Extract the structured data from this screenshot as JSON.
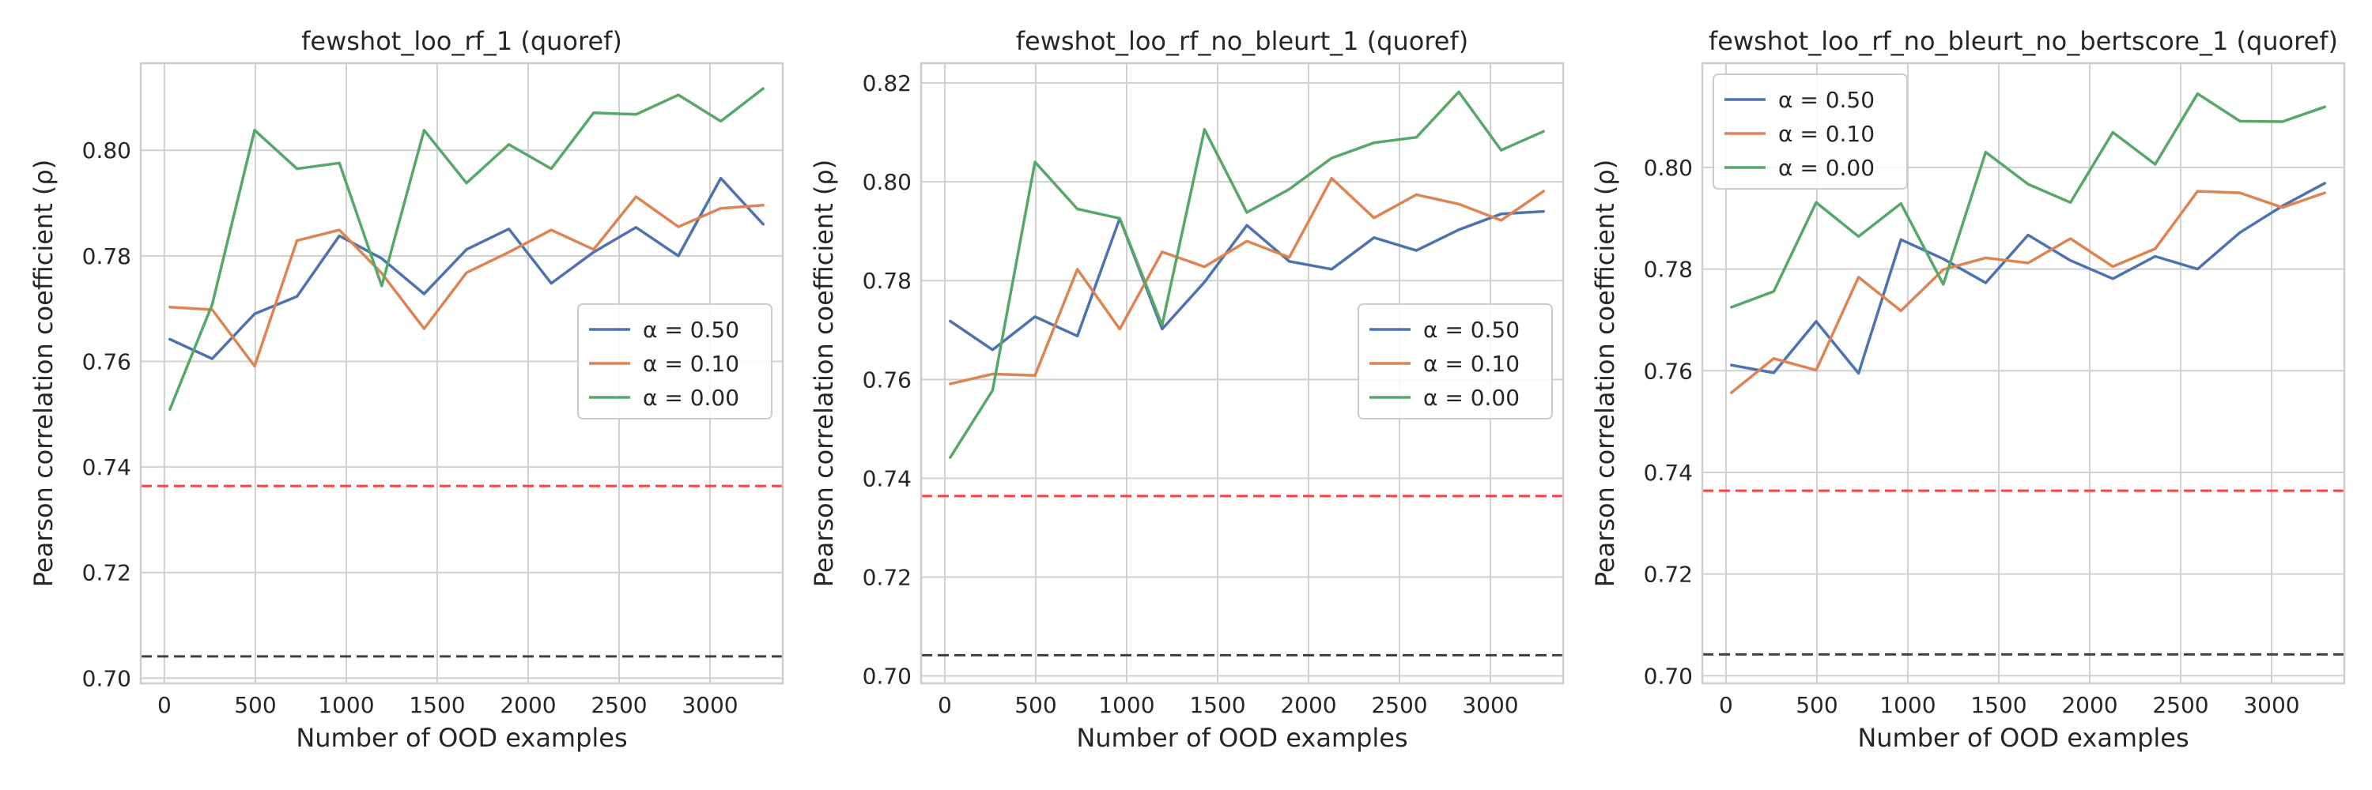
{
  "chart_data": [
    {
      "type": "line",
      "title": "fewshot_loo_rf_1 (quoref)",
      "xlabel": "Number of OOD examples",
      "ylabel": "Pearson correlation coefficient (ρ)",
      "xlim": [
        -130,
        3400
      ],
      "ylim": [
        0.699,
        0.8165
      ],
      "xticks": [
        0,
        500,
        1000,
        1500,
        2000,
        2500,
        3000
      ],
      "yticks": [
        0.7,
        0.72,
        0.74,
        0.76,
        0.78,
        0.8
      ],
      "ytick_labels": [
        "0.70",
        "0.72",
        "0.74",
        "0.76",
        "0.78",
        "0.80"
      ],
      "grid": true,
      "legend_position": "center-right",
      "x": [
        30,
        263,
        496,
        729,
        962,
        1195,
        1428,
        1661,
        1894,
        2127,
        2360,
        2593,
        2826,
        3059,
        3292
      ],
      "series": [
        {
          "name": "α = 0.50",
          "color": "#4c72b0",
          "values": [
            0.7642,
            0.7605,
            0.769,
            0.7723,
            0.7838,
            0.7795,
            0.7728,
            0.7812,
            0.7851,
            0.7748,
            0.7807,
            0.7854,
            0.78,
            0.7947,
            0.786
          ]
        },
        {
          "name": "α = 0.10",
          "color": "#dd8452",
          "values": [
            0.7703,
            0.7698,
            0.7591,
            0.7829,
            0.7849,
            0.7767,
            0.7662,
            0.7768,
            0.7807,
            0.7849,
            0.7812,
            0.7912,
            0.7855,
            0.789,
            0.7896
          ]
        },
        {
          "name": "α = 0.00",
          "color": "#55a868",
          "values": [
            0.7509,
            0.7708,
            0.8038,
            0.7965,
            0.7976,
            0.7743,
            0.8038,
            0.7938,
            0.8011,
            0.7965,
            0.8071,
            0.8068,
            0.8105,
            0.8055,
            0.8117
          ]
        }
      ],
      "reference_lines": [
        {
          "y": 0.7364,
          "color": "#ff4040"
        },
        {
          "y": 0.7041,
          "color": "#404040"
        }
      ]
    },
    {
      "type": "line",
      "title": "fewshot_loo_rf_no_bleurt_1 (quoref)",
      "xlabel": "Number of OOD examples",
      "ylabel": "Pearson correlation coefficient (ρ)",
      "xlim": [
        -130,
        3400
      ],
      "ylim": [
        0.6985,
        0.824
      ],
      "xticks": [
        0,
        500,
        1000,
        1500,
        2000,
        2500,
        3000
      ],
      "yticks": [
        0.7,
        0.72,
        0.74,
        0.76,
        0.78,
        0.8,
        0.82
      ],
      "ytick_labels": [
        "0.70",
        "0.72",
        "0.74",
        "0.76",
        "0.78",
        "0.80",
        "0.82"
      ],
      "grid": true,
      "legend_position": "center-right",
      "x": [
        30,
        263,
        496,
        729,
        962,
        1195,
        1428,
        1661,
        1894,
        2127,
        2360,
        2593,
        2826,
        3059,
        3292
      ],
      "series": [
        {
          "name": "α = 0.50",
          "color": "#4c72b0",
          "values": [
            0.7718,
            0.766,
            0.7727,
            0.7688,
            0.7926,
            0.7702,
            0.7797,
            0.7912,
            0.7839,
            0.7823,
            0.7887,
            0.7861,
            0.7903,
            0.7935,
            0.794
          ]
        },
        {
          "name": "α = 0.10",
          "color": "#dd8452",
          "values": [
            0.7591,
            0.7611,
            0.7608,
            0.7823,
            0.7702,
            0.7858,
            0.7828,
            0.788,
            0.7847,
            0.8007,
            0.7927,
            0.7974,
            0.7955,
            0.7922,
            0.7981
          ]
        },
        {
          "name": "α = 0.00",
          "color": "#55a868",
          "values": [
            0.7442,
            0.7578,
            0.804,
            0.7945,
            0.7926,
            0.771,
            0.8106,
            0.7938,
            0.7985,
            0.8048,
            0.8079,
            0.809,
            0.8182,
            0.8064,
            0.8102
          ]
        }
      ],
      "reference_lines": [
        {
          "y": 0.7364,
          "color": "#ff4040"
        },
        {
          "y": 0.7042,
          "color": "#404040"
        }
      ]
    },
    {
      "type": "line",
      "title": "fewshot_loo_rf_no_bleurt_no_bertscore_1 (quoref)",
      "xlabel": "Number of OOD examples",
      "ylabel": "Pearson correlation coefficient (ρ)",
      "xlim": [
        -130,
        3400
      ],
      "ylim": [
        0.6985,
        0.8205
      ],
      "xticks": [
        0,
        500,
        1000,
        1500,
        2000,
        2500,
        3000
      ],
      "yticks": [
        0.7,
        0.72,
        0.74,
        0.76,
        0.78,
        0.8
      ],
      "ytick_labels": [
        "0.70",
        "0.72",
        "0.74",
        "0.76",
        "0.78",
        "0.80"
      ],
      "grid": true,
      "legend_position": "top-left",
      "x": [
        30,
        263,
        496,
        729,
        962,
        1195,
        1428,
        1661,
        1894,
        2127,
        2360,
        2593,
        2826,
        3059,
        3292
      ],
      "series": [
        {
          "name": "α = 0.50",
          "color": "#4c72b0",
          "values": [
            0.7611,
            0.7596,
            0.7697,
            0.7595,
            0.7858,
            0.782,
            0.7773,
            0.7867,
            0.7817,
            0.7781,
            0.7825,
            0.78,
            0.7872,
            0.7924,
            0.7969
          ]
        },
        {
          "name": "α = 0.10",
          "color": "#dd8452",
          "values": [
            0.7557,
            0.7624,
            0.7601,
            0.7784,
            0.7718,
            0.7799,
            0.7822,
            0.7812,
            0.786,
            0.7805,
            0.784,
            0.7953,
            0.795,
            0.7921,
            0.795
          ]
        },
        {
          "name": "α = 0.00",
          "color": "#55a868",
          "values": [
            0.7725,
            0.7756,
            0.7931,
            0.7864,
            0.7929,
            0.777,
            0.803,
            0.7967,
            0.7931,
            0.8069,
            0.8006,
            0.8145,
            0.8091,
            0.809,
            0.8119
          ]
        }
      ],
      "reference_lines": [
        {
          "y": 0.7364,
          "color": "#ff4040"
        },
        {
          "y": 0.7042,
          "color": "#404040"
        }
      ]
    }
  ]
}
